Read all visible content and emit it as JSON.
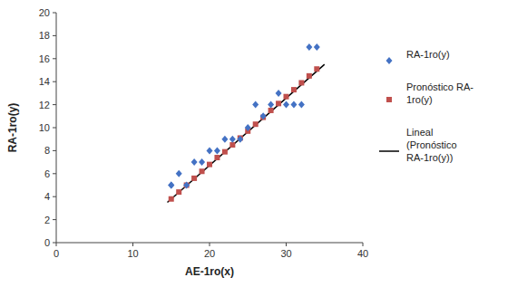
{
  "chart_data": {
    "type": "scatter",
    "xlabel": "AE-1ro(x)",
    "ylabel": "RA-1ro(y)",
    "xlim": [
      0,
      40
    ],
    "ylim": [
      0,
      20
    ],
    "xticks": [
      0,
      10,
      20,
      30,
      40
    ],
    "yticks": [
      0,
      2,
      4,
      6,
      8,
      10,
      12,
      14,
      16,
      18,
      20
    ],
    "grid": false,
    "legend": "right",
    "series": [
      {
        "name": "RA-1ro(y)",
        "color": "#4472C4",
        "marker": "diamond",
        "x": [
          15,
          15,
          16,
          17,
          18,
          19,
          20,
          21,
          22,
          23,
          24,
          25,
          26,
          27,
          28,
          29,
          30,
          31,
          32,
          33,
          34
        ],
        "values": [
          5,
          5,
          6,
          5,
          7,
          7,
          8,
          8,
          9,
          9,
          9,
          10,
          12,
          11,
          12,
          13,
          12,
          12,
          12,
          17,
          17
        ]
      },
      {
        "name": "Pronóstico RA-\n1ro(y)",
        "color": "#C0504D",
        "marker": "square",
        "x": [
          15,
          16,
          17,
          18,
          19,
          20,
          21,
          22,
          23,
          24,
          25,
          26,
          27,
          28,
          29,
          30,
          31,
          32,
          33,
          34
        ],
        "values": [
          3.8,
          4.4,
          5.0,
          5.6,
          6.2,
          6.8,
          7.4,
          7.9,
          8.5,
          9.1,
          9.7,
          10.3,
          10.9,
          11.5,
          12.1,
          12.7,
          13.3,
          13.9,
          14.5,
          15.1
        ]
      },
      {
        "name": "Lineal\n(Pronóstico\nRA-1ro(y))",
        "type": "line",
        "color": "#000000",
        "line_style": "solid",
        "x": [
          14.5,
          35.0
        ],
        "values": [
          3.5,
          15.5
        ]
      }
    ]
  }
}
